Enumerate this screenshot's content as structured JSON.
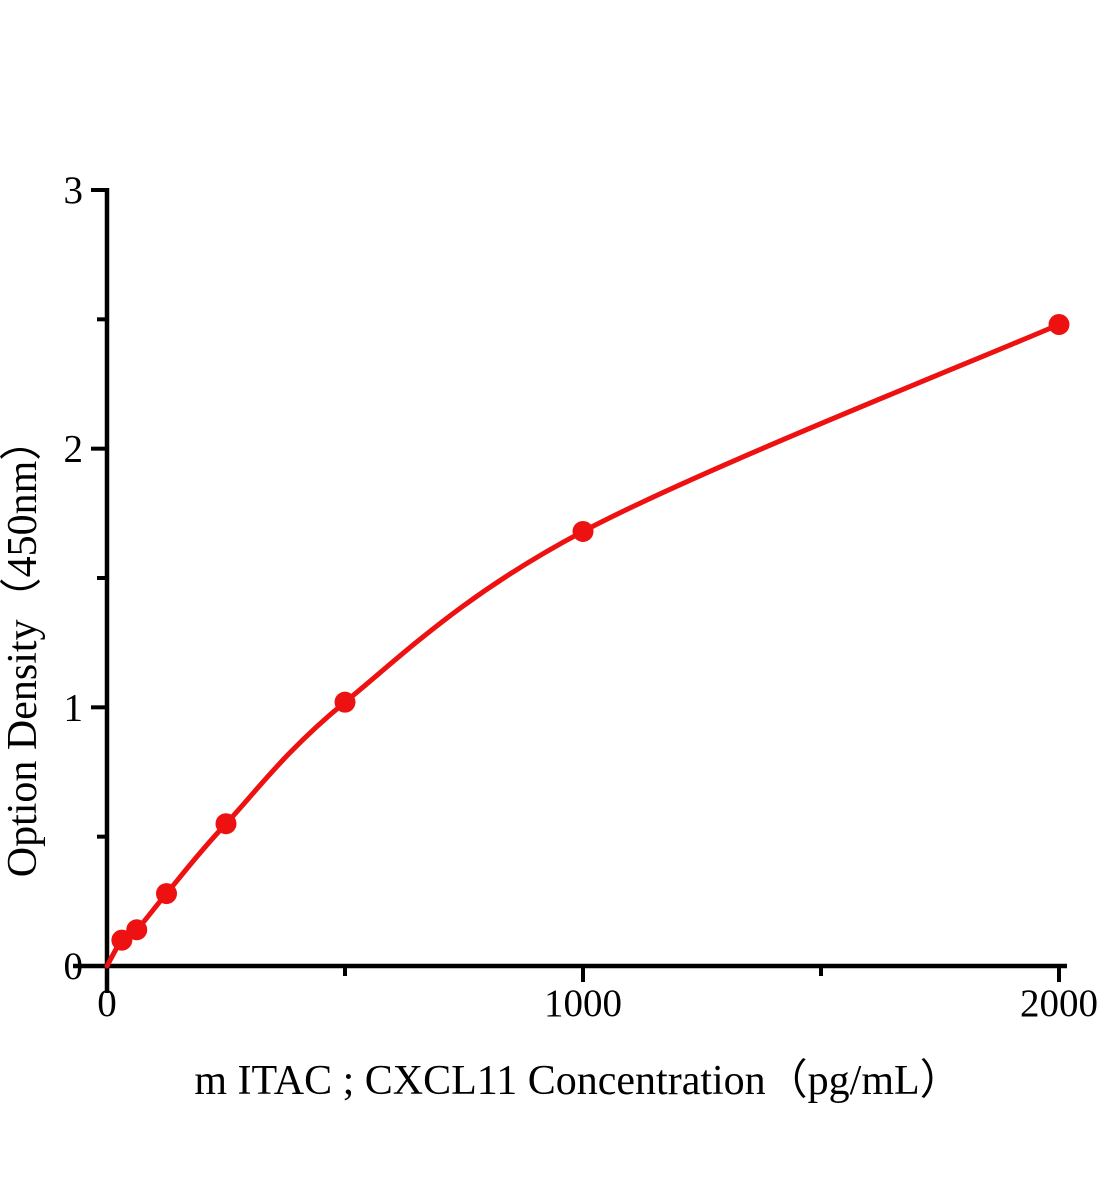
{
  "page": {
    "background": "#ffffff"
  },
  "chart_data": {
    "type": "line",
    "title": "",
    "xlabel": "m ITAC ; CXCL11 Concentration（pg/mL）",
    "ylabel": "Option Density（450nm）",
    "xlim": [
      0,
      2000
    ],
    "ylim": [
      0,
      3
    ],
    "grid": false,
    "legend": "none",
    "axis_color": "#000000",
    "line_color": "#ee1111",
    "marker_color": "#ee1111",
    "x_ticks": {
      "major": [
        {
          "value": 0,
          "label": "0"
        },
        {
          "value": 1000,
          "label": "1000"
        },
        {
          "value": 2000,
          "label": "2000"
        }
      ],
      "minor": [
        500,
        1500
      ]
    },
    "y_ticks": {
      "major": [
        {
          "value": 0,
          "label": "0"
        },
        {
          "value": 1,
          "label": "1"
        },
        {
          "value": 2,
          "label": "2"
        },
        {
          "value": 3,
          "label": "3"
        }
      ],
      "minor": [
        0.5,
        1.5,
        2.5
      ]
    },
    "points": [
      {
        "x": 0,
        "y": 0,
        "marker": false
      },
      {
        "x": 31.25,
        "y": 0.1,
        "marker": true
      },
      {
        "x": 62.5,
        "y": 0.14,
        "marker": true
      },
      {
        "x": 125,
        "y": 0.28,
        "marker": true
      },
      {
        "x": 250,
        "y": 0.55,
        "marker": true
      },
      {
        "x": 500,
        "y": 1.02,
        "marker": true
      },
      {
        "x": 1000,
        "y": 1.68,
        "marker": true
      },
      {
        "x": 2000,
        "y": 2.48,
        "marker": true
      }
    ]
  }
}
